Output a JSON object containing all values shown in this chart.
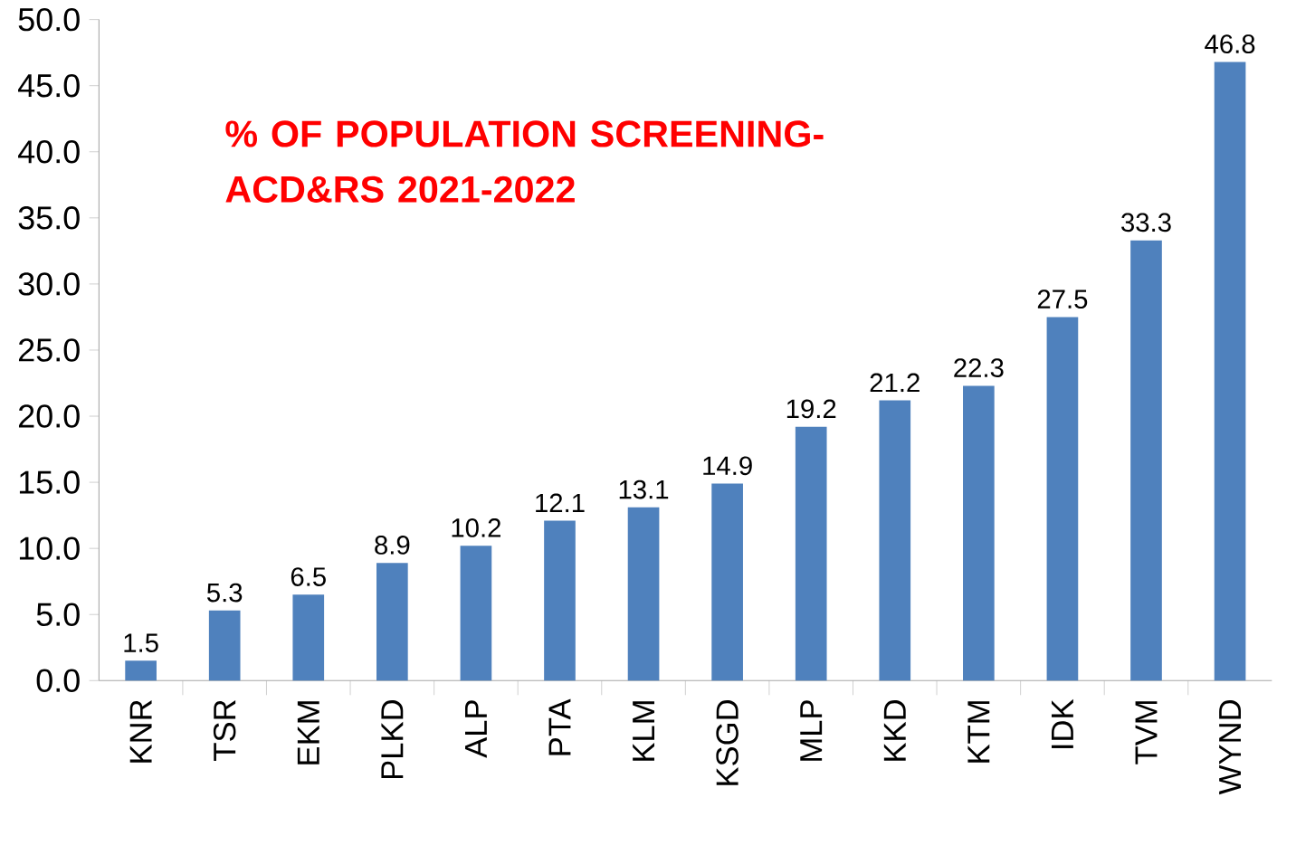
{
  "chart_data": {
    "type": "bar",
    "title": "% OF POPULATION SCREENING-ACD&RS 2021-2022",
    "categories": [
      "KNR",
      "TSR",
      "EKM",
      "PLKD",
      "ALP",
      "PTA",
      "KLM",
      "KSGD",
      "MLP",
      "KKD",
      "KTM",
      "IDK",
      "TVM",
      "WYND"
    ],
    "values": [
      1.5,
      5.3,
      6.5,
      8.9,
      10.2,
      12.1,
      13.1,
      14.9,
      19.2,
      21.2,
      22.3,
      27.5,
      33.3,
      46.8
    ],
    "color": "#4f81bd",
    "ylim": [
      0,
      50
    ],
    "yticks": [
      {
        "value": 0,
        "label": "0.0"
      },
      {
        "value": 5,
        "label": "5.0"
      },
      {
        "value": 10,
        "label": "10.0"
      },
      {
        "value": 15,
        "label": "15.0"
      },
      {
        "value": 20,
        "label": "20.0"
      },
      {
        "value": 25,
        "label": "25.0"
      },
      {
        "value": 30,
        "label": "30.0"
      },
      {
        "value": 35,
        "label": "35.0"
      },
      {
        "value": 40,
        "label": "40.0"
      },
      {
        "value": 45,
        "label": "45.0"
      },
      {
        "value": 50,
        "label": "50.0"
      }
    ],
    "data_labels": true
  }
}
